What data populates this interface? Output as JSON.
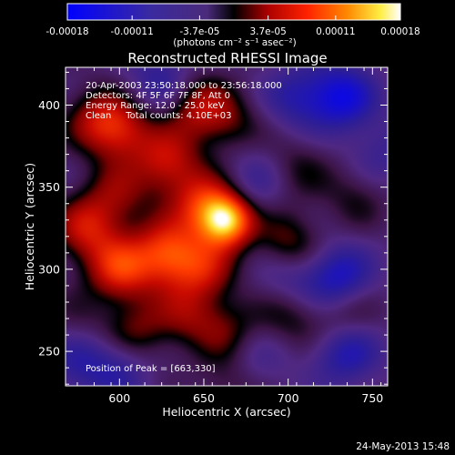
{
  "colorbar": {
    "tick_labels": [
      "-0.00018",
      "-0.00011",
      "-3.7e-05",
      "3.7e-05",
      "0.00011",
      "0.00018"
    ],
    "tick_values": [
      -0.00018,
      -0.00011,
      -3.7e-05,
      3.7e-05,
      0.00011,
      0.00018
    ],
    "range": [
      -0.00018,
      0.00018
    ],
    "unit_label": "(photons cm⁻² s⁻¹ asec⁻²)"
  },
  "chart_data": {
    "type": "heatmap",
    "title": "Reconstructed RHESSI Image",
    "xlabel": "Heliocentric X (arcsec)",
    "ylabel": "Heliocentric Y (arcsec)",
    "xlim": [
      568,
      759
    ],
    "ylim": [
      229,
      423
    ],
    "x_ticks": [
      600,
      650,
      700,
      750
    ],
    "y_ticks": [
      250,
      300,
      350,
      400
    ],
    "x_tick_labels": [
      "600",
      "650",
      "700",
      "750"
    ],
    "y_tick_labels": [
      "250",
      "300",
      "350",
      "400"
    ],
    "colormap": [
      "#0000ff",
      "#2a1a8a",
      "#4a2a8a",
      "#000000",
      "#aa0000",
      "#ff3300",
      "#ff8800",
      "#ffff66",
      "#ffffff"
    ],
    "annotations": [
      "20-Apr-2003 23:50:18.000 to 23:56:18.000",
      "Detectors: 4F 5F 6F 7F 8F, Att 0",
      "Energy Range: 12.0 - 25.0 keV",
      "Clean     Total counts: 4.10E+03"
    ],
    "peak_label": "Position of Peak = [663,330]",
    "peak": [
      663,
      330
    ],
    "blobs": [
      {
        "x": 663,
        "y": 330,
        "v": 0.00018
      },
      {
        "x": 650,
        "y": 340,
        "v": 0.0001
      },
      {
        "x": 600,
        "y": 385,
        "v": 9e-05
      },
      {
        "x": 585,
        "y": 392,
        "v": 6e-05
      },
      {
        "x": 645,
        "y": 400,
        "v": 8e-05
      },
      {
        "x": 665,
        "y": 390,
        "v": 5e-05
      },
      {
        "x": 628,
        "y": 365,
        "v": 9e-05
      },
      {
        "x": 598,
        "y": 345,
        "v": 6e-05
      },
      {
        "x": 628,
        "y": 310,
        "v": 0.00012
      },
      {
        "x": 600,
        "y": 300,
        "v": 0.00011
      },
      {
        "x": 580,
        "y": 325,
        "v": 9e-05
      },
      {
        "x": 650,
        "y": 300,
        "v": 8e-05
      },
      {
        "x": 700,
        "y": 315,
        "v": 7e-05
      },
      {
        "x": 610,
        "y": 262,
        "v": 6e-05
      },
      {
        "x": 640,
        "y": 272,
        "v": 6e-05
      },
      {
        "x": 665,
        "y": 262,
        "v": 5e-05
      },
      {
        "x": 700,
        "y": 272,
        "v": 5e-05
      },
      {
        "x": 735,
        "y": 272,
        "v": 5e-05
      },
      {
        "x": 740,
        "y": 345,
        "v": 4e-05
      },
      {
        "x": 705,
        "y": 362,
        "v": 4e-05
      },
      {
        "x": 732,
        "y": 405,
        "v": -0.0001
      },
      {
        "x": 705,
        "y": 405,
        "v": -6e-05
      },
      {
        "x": 730,
        "y": 295,
        "v": -9e-05
      },
      {
        "x": 700,
        "y": 295,
        "v": -5e-05
      },
      {
        "x": 735,
        "y": 250,
        "v": -8e-05
      },
      {
        "x": 625,
        "y": 415,
        "v": -6e-05
      },
      {
        "x": 575,
        "y": 245,
        "v": -6e-05
      },
      {
        "x": 600,
        "y": 240,
        "v": -5e-05
      },
      {
        "x": 680,
        "y": 355,
        "v": -4e-05
      },
      {
        "x": 680,
        "y": 245,
        "v": -4e-05
      },
      {
        "x": 755,
        "y": 370,
        "v": -4e-05
      },
      {
        "x": 665,
        "y": 232,
        "v": 4e-05
      },
      {
        "x": 575,
        "y": 265,
        "v": 3e-05
      }
    ]
  },
  "footer": {
    "date_stamp": "24-May-2013 15:48"
  }
}
